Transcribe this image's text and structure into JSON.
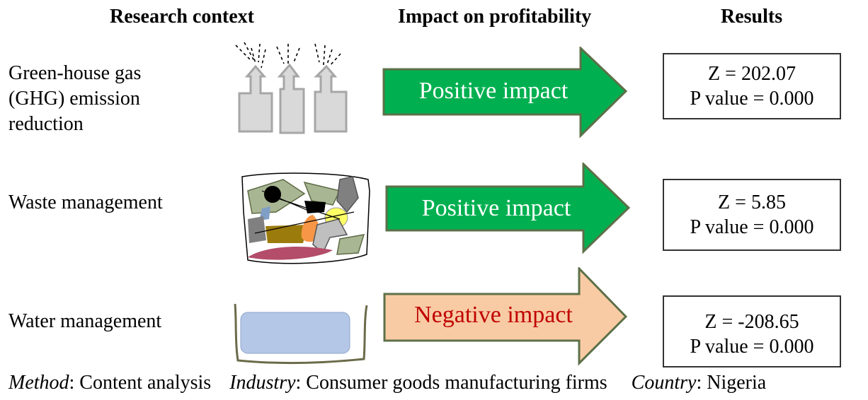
{
  "headers": {
    "context": "Research context",
    "impact": "Impact on profitability",
    "results": "Results"
  },
  "rows": [
    {
      "context_lines": [
        "Green-house gas",
        "(GHG) emission",
        "reduction"
      ],
      "illustration": "smokestack-icon",
      "impact_label": "Positive impact",
      "z": "Z = 202.07",
      "p": "P value = 0.000"
    },
    {
      "context_lines": [
        "Waste management"
      ],
      "illustration": "waste-pile-icon",
      "impact_label": "Positive impact",
      "z": "Z = 5.85",
      "p": "P value = 0.000"
    },
    {
      "context_lines": [
        "Water management"
      ],
      "illustration": "water-tank-icon",
      "impact_label": "Negative impact",
      "z": "Z = -208.65",
      "p": "P value = 0.000"
    }
  ],
  "footer": {
    "method_label": "Method",
    "method_value": ": Content analysis",
    "industry_label": "Industry",
    "industry_value": ": Consumer goods manufacturing firms",
    "country_label": "Country",
    "country_value": ": Nigeria"
  },
  "colors": {
    "positive_fill": "#00b050",
    "negative_fill": "#f8cba4",
    "arrow_stroke": "#5d7048",
    "positive_text": "#ffffff",
    "negative_text": "#c00000"
  }
}
